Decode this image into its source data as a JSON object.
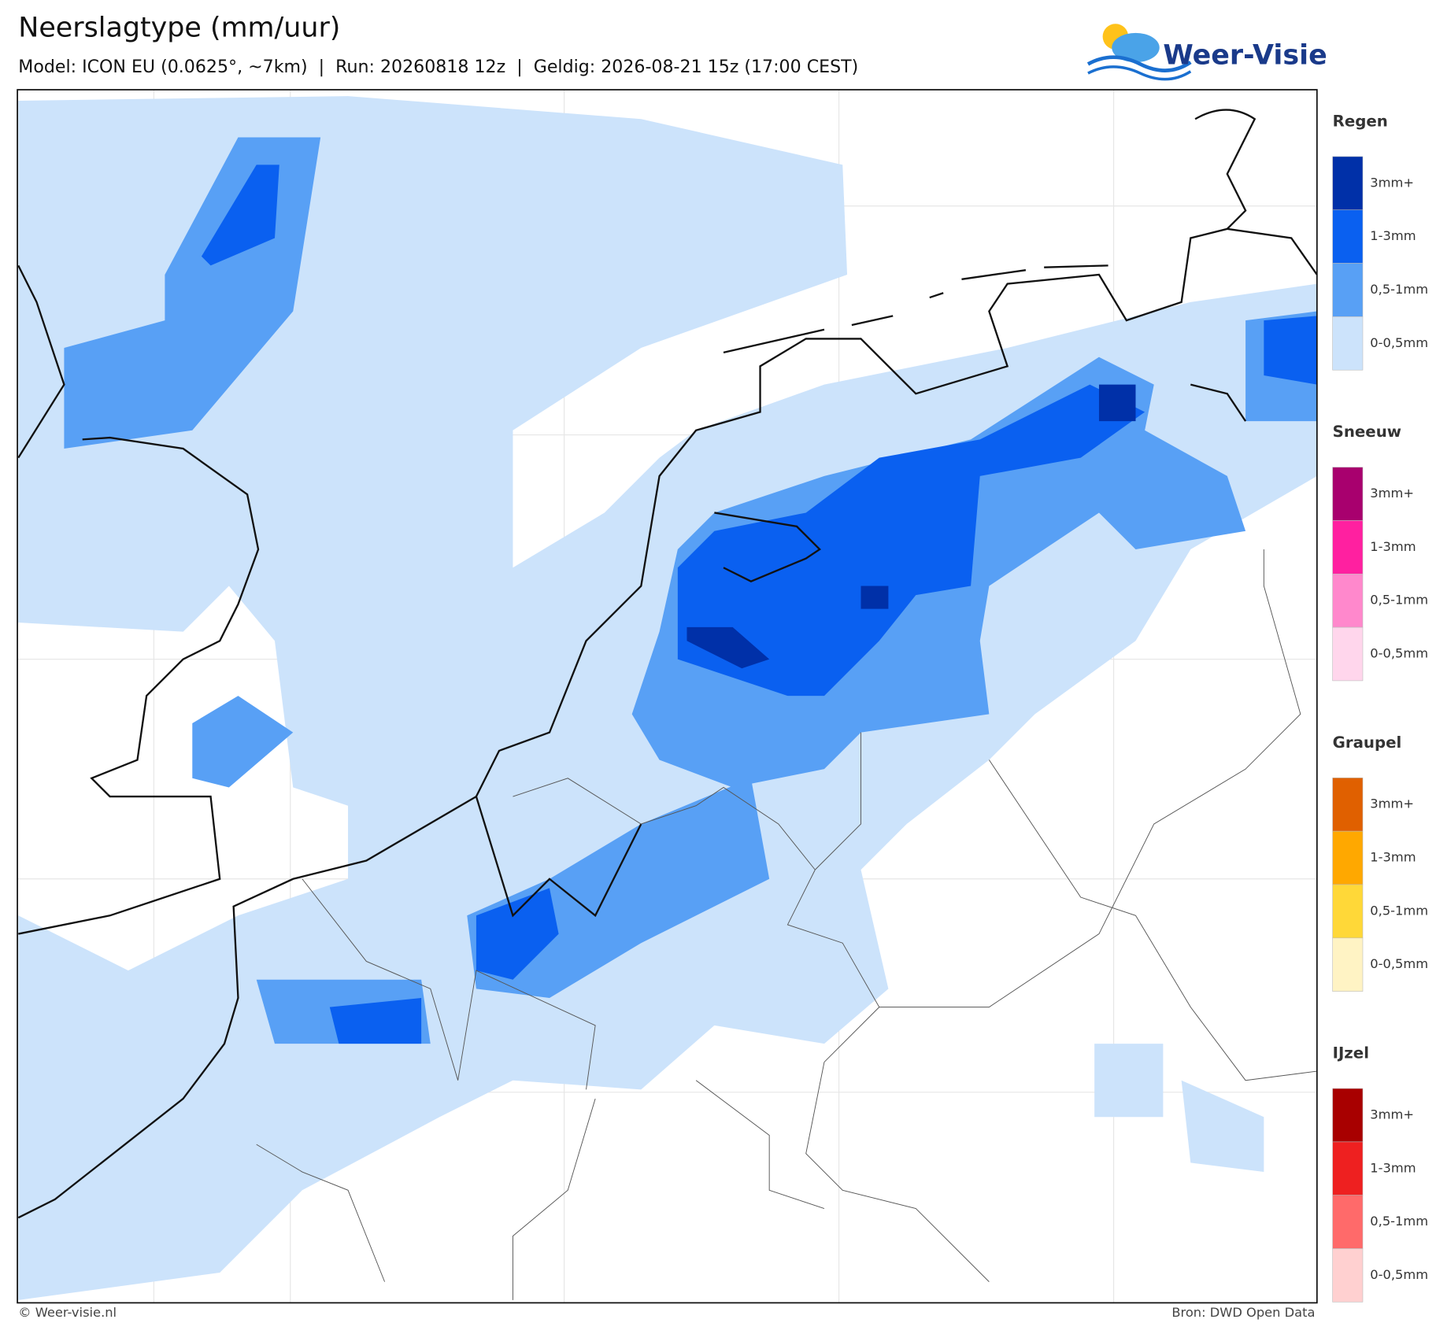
{
  "header": {
    "title": "Neerslagtype (mm/uur)",
    "subtitle": "Model: ICON EU (0.0625°, ~7km)  |  Run: 20260818 12z  |  Geldig: 2026-08-21 15z (17:00 CEST)",
    "logo": "Weer-Visie"
  },
  "legend": [
    {
      "title": "Regen",
      "items": [
        {
          "label": "3mm+",
          "color": "#0030a8"
        },
        {
          "label": "1-3mm",
          "color": "#0a60f0"
        },
        {
          "label": "0,5-1mm",
          "color": "#58a0f5"
        },
        {
          "label": "0-0,5mm",
          "color": "#cce3fb"
        }
      ]
    },
    {
      "title": "Sneeuw",
      "items": [
        {
          "label": "3mm+",
          "color": "#a8006e"
        },
        {
          "label": "1-3mm",
          "color": "#ff20a0"
        },
        {
          "label": "0,5-1mm",
          "color": "#ff88cc"
        },
        {
          "label": "0-0,5mm",
          "color": "#ffd6ec"
        }
      ]
    },
    {
      "title": "Graupel",
      "items": [
        {
          "label": "3mm+",
          "color": "#e06000"
        },
        {
          "label": "1-3mm",
          "color": "#ffa800"
        },
        {
          "label": "0,5-1mm",
          "color": "#ffd838"
        },
        {
          "label": "0-0,5mm",
          "color": "#fff3c4"
        }
      ]
    },
    {
      "title": "IJzel",
      "items": [
        {
          "label": "3mm+",
          "color": "#a80000"
        },
        {
          "label": "1-3mm",
          "color": "#ee2020"
        },
        {
          "label": "0,5-1mm",
          "color": "#ff6a6a"
        },
        {
          "label": "0-0,5mm",
          "color": "#ffd0d0"
        }
      ]
    }
  ],
  "footer": {
    "copyright": "© Weer-visie.nl",
    "source": "Bron: DWD Open Data"
  }
}
